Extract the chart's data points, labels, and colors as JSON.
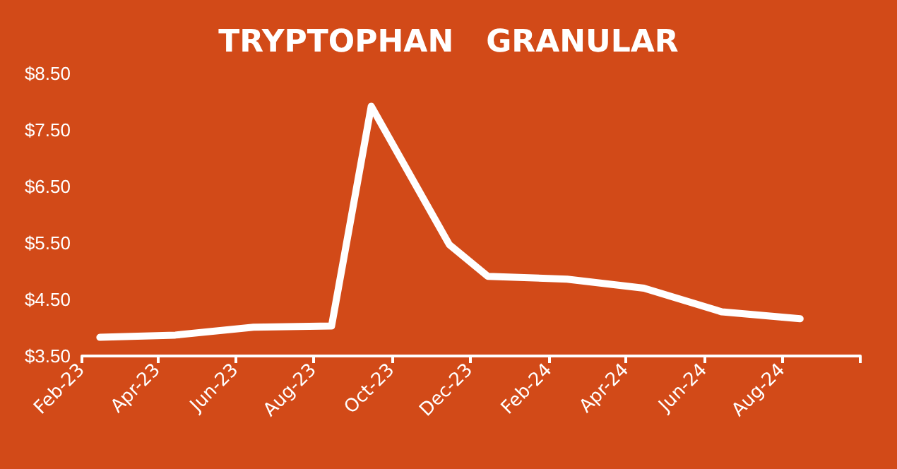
{
  "chart_data": {
    "type": "line",
    "title": "TRYPTOPHAN   GRANULAR",
    "x": [
      "2023-02-15",
      "2023-04-15",
      "2023-06-15",
      "2023-08-15",
      "2023-09-15",
      "2023-11-15",
      "2023-12-15",
      "2024-02-15",
      "2024-04-15",
      "2024-06-15",
      "2024-08-15"
    ],
    "series": [
      {
        "color": "#ffffff",
        "values": [
          3.83,
          3.87,
          4.01,
          4.03,
          7.92,
          5.47,
          4.91,
          4.86,
          4.7,
          4.28,
          4.16
        ]
      }
    ],
    "xlim": [
      "2023-02-01",
      "2024-10-01"
    ],
    "xticks": [
      {
        "value": "2023-02-01",
        "label": "Feb-23"
      },
      {
        "value": "2023-04-01",
        "label": "Apr-23"
      },
      {
        "value": "2023-06-01",
        "label": "Jun-23"
      },
      {
        "value": "2023-08-01",
        "label": "Aug-23"
      },
      {
        "value": "2023-10-01",
        "label": "Oct-23"
      },
      {
        "value": "2023-12-01",
        "label": "Dec-23"
      },
      {
        "value": "2024-02-01",
        "label": "Feb-24"
      },
      {
        "value": "2024-04-01",
        "label": "Apr-24"
      },
      {
        "value": "2024-06-01",
        "label": "Jun-24"
      },
      {
        "value": "2024-08-01",
        "label": "Aug-24"
      },
      {
        "value": "2024-10-01",
        "label": null
      }
    ],
    "ylim": [
      3.5,
      8.5
    ],
    "yticks": [
      {
        "value": 3.5,
        "label": "$3.50"
      },
      {
        "value": 4.5,
        "label": "$4.50"
      },
      {
        "value": 5.5,
        "label": "$5.50"
      },
      {
        "value": 6.5,
        "label": "$6.50"
      },
      {
        "value": 7.5,
        "label": "$7.50"
      },
      {
        "value": 8.5,
        "label": "$8.50"
      }
    ],
    "grid": false,
    "marker": "none",
    "line_style": "solid"
  }
}
